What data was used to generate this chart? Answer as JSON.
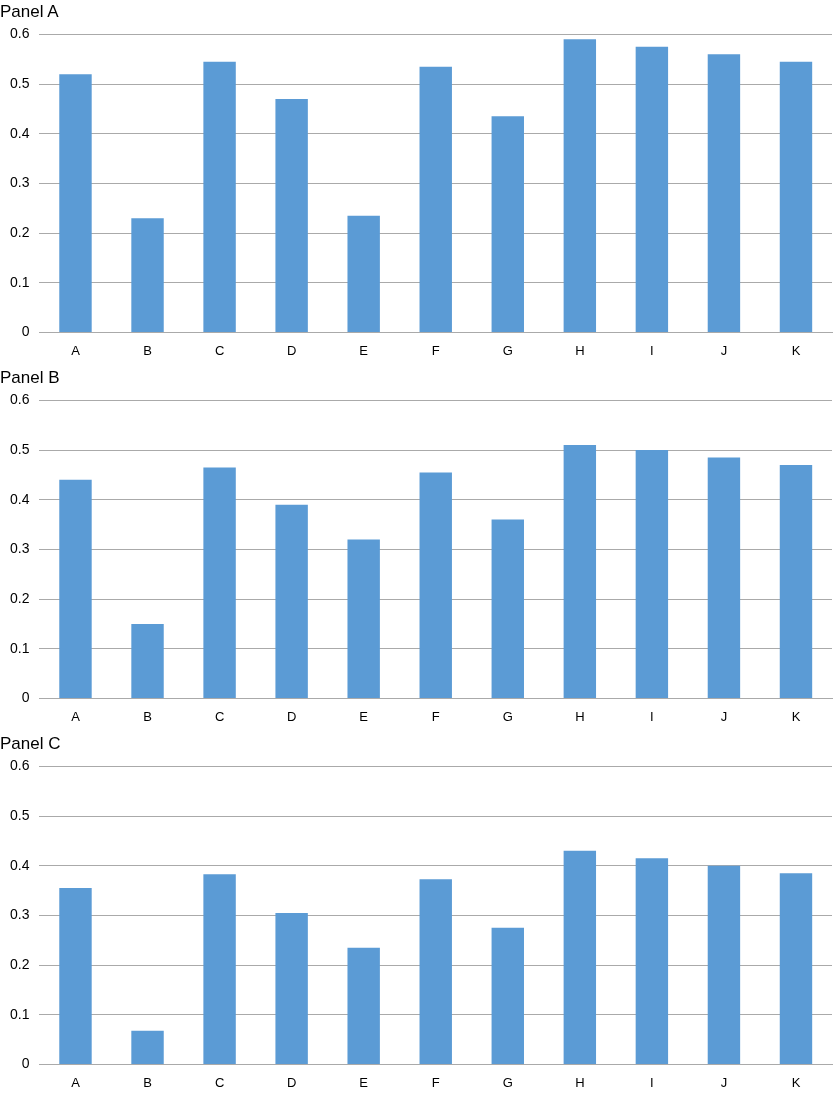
{
  "chart_data": [
    {
      "type": "bar",
      "title": "Panel A",
      "categories": [
        "A",
        "B",
        "C",
        "D",
        "E",
        "F",
        "G",
        "H",
        "I",
        "J",
        "K"
      ],
      "values": [
        0.52,
        0.23,
        0.545,
        0.47,
        0.235,
        0.535,
        0.435,
        0.59,
        0.575,
        0.56,
        0.545
      ],
      "color": "#5b9bd5",
      "ylim": [
        0,
        0.6
      ],
      "yticks": [
        0,
        0.1,
        0.2,
        0.3,
        0.4,
        0.5,
        0.6
      ],
      "grid": "y"
    },
    {
      "type": "bar",
      "title": "Panel B",
      "categories": [
        "A",
        "B",
        "C",
        "D",
        "E",
        "F",
        "G",
        "H",
        "I",
        "J",
        "K"
      ],
      "values": [
        0.44,
        0.15,
        0.465,
        0.39,
        0.32,
        0.455,
        0.36,
        0.51,
        0.5,
        0.485,
        0.47
      ],
      "color": "#5b9bd5",
      "ylim": [
        0,
        0.6
      ],
      "yticks": [
        0,
        0.1,
        0.2,
        0.3,
        0.4,
        0.5,
        0.6
      ],
      "grid": "y"
    },
    {
      "type": "bar",
      "title": "Panel C",
      "categories": [
        "A",
        "B",
        "C",
        "D",
        "E",
        "F",
        "G",
        "H",
        "I",
        "J",
        "K"
      ],
      "values": [
        0.355,
        0.068,
        0.383,
        0.305,
        0.235,
        0.373,
        0.275,
        0.43,
        0.415,
        0.4,
        0.385
      ],
      "color": "#5b9bd5",
      "ylim": [
        0,
        0.6
      ],
      "yticks": [
        0,
        0.1,
        0.2,
        0.3,
        0.4,
        0.5,
        0.6
      ],
      "grid": "y"
    }
  ]
}
